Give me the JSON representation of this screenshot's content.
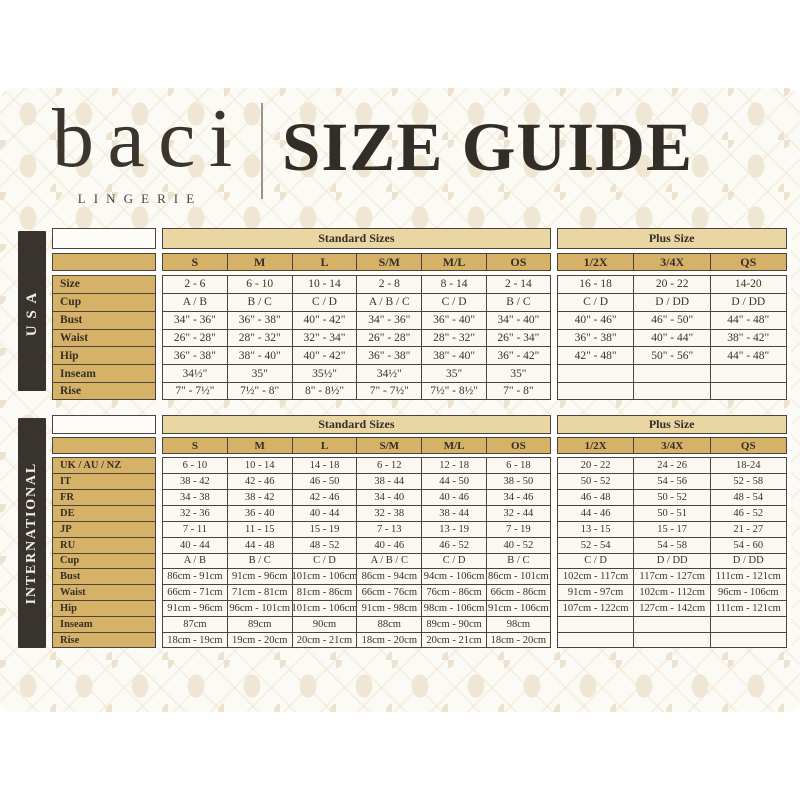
{
  "header": {
    "brand": "baci",
    "brand_sub": "LINGERIE",
    "title": "SIZE GUIDE"
  },
  "colors": {
    "gold": "#d6b269",
    "gold_light": "#e9d6a3",
    "region_strip": "#39332e",
    "border": "#4c443b",
    "text": "#352e27"
  },
  "tables": {
    "usa": {
      "region": "USA",
      "sections": {
        "standard": "Standard Sizes",
        "plus": "Plus Size"
      },
      "columns": [
        "S",
        "M",
        "L",
        "S/M",
        "M/L",
        "OS",
        "1/2X",
        "3/4X",
        "QS"
      ],
      "rows": [
        {
          "label": "Size",
          "values": [
            "2 - 6",
            "6 - 10",
            "10 - 14",
            "2 - 8",
            "8 - 14",
            "2 - 14",
            "16 - 18",
            "20 - 22",
            "14-20"
          ]
        },
        {
          "label": "Cup",
          "values": [
            "A / B",
            "B / C",
            "C / D",
            "A / B / C",
            "C / D",
            "B / C",
            "C / D",
            "D / DD",
            "D / DD"
          ]
        },
        {
          "label": "Bust",
          "values": [
            "34\" - 36\"",
            "36\" - 38\"",
            "40\" - 42\"",
            "34\" - 36\"",
            "36\" - 40\"",
            "34\" - 40\"",
            "40\" - 46\"",
            "46\" - 50\"",
            "44\" - 48\""
          ]
        },
        {
          "label": "Waist",
          "values": [
            "26\" - 28\"",
            "28\" - 32\"",
            "32\" - 34\"",
            "26\" - 28\"",
            "28\" - 32\"",
            "26\" - 34\"",
            "36\" - 38\"",
            "40\" - 44\"",
            "38\" - 42\""
          ]
        },
        {
          "label": "Hip",
          "values": [
            "36\" - 38\"",
            "38\" - 40\"",
            "40\" - 42\"",
            "36\" - 38\"",
            "38\" - 40\"",
            "36\" - 42\"",
            "42\" - 48\"",
            "50\" - 56\"",
            "44\" - 48\""
          ]
        },
        {
          "label": "Inseam",
          "values": [
            "34½\"",
            "35\"",
            "35½\"",
            "34½\"",
            "35\"",
            "35\"",
            "",
            "",
            ""
          ]
        },
        {
          "label": "Rise",
          "values": [
            "7\" - 7½\"",
            "7½\" - 8\"",
            "8\" - 8½\"",
            "7\" - 7½\"",
            "7½\" - 8½\"",
            "7\" - 8\"",
            "",
            "",
            ""
          ]
        }
      ]
    },
    "intl": {
      "region": "INTERNATIONAL",
      "sections": {
        "standard": "Standard Sizes",
        "plus": "Plus Size"
      },
      "columns": [
        "S",
        "M",
        "L",
        "S/M",
        "M/L",
        "OS",
        "1/2X",
        "3/4X",
        "QS"
      ],
      "rows": [
        {
          "label": "UK / AU / NZ",
          "values": [
            "6 - 10",
            "10 - 14",
            "14 - 18",
            "6 - 12",
            "12 - 18",
            "6 - 18",
            "20 - 22",
            "24 - 26",
            "18-24"
          ]
        },
        {
          "label": "IT",
          "values": [
            "38 - 42",
            "42 - 46",
            "46 - 50",
            "38 - 44",
            "44 - 50",
            "38 - 50",
            "50 - 52",
            "54 - 56",
            "52 - 58"
          ]
        },
        {
          "label": "FR",
          "values": [
            "34 - 38",
            "38 - 42",
            "42 - 46",
            "34 - 40",
            "40 - 46",
            "34 - 46",
            "46 - 48",
            "50 - 52",
            "48 - 54"
          ]
        },
        {
          "label": "DE",
          "values": [
            "32 - 36",
            "36 - 40",
            "40 - 44",
            "32 - 38",
            "38 - 44",
            "32 - 44",
            "44 - 46",
            "50 - 51",
            "46 - 52"
          ]
        },
        {
          "label": "JP",
          "values": [
            "7 - 11",
            "11 - 15",
            "15 - 19",
            "7 - 13",
            "13 - 19",
            "7 - 19",
            "13 - 15",
            "15 - 17",
            "21 - 27"
          ]
        },
        {
          "label": "RU",
          "values": [
            "40 - 44",
            "44 - 48",
            "48 - 52",
            "40 - 46",
            "46 - 52",
            "40 - 52",
            "52 - 54",
            "54 - 58",
            "54 - 60"
          ]
        },
        {
          "label": "Cup",
          "values": [
            "A / B",
            "B / C",
            "C / D",
            "A / B / C",
            "C / D",
            "B / C",
            "C / D",
            "D / DD",
            "D / DD"
          ]
        },
        {
          "label": "Bust",
          "values": [
            "86cm - 91cm",
            "91cm - 96cm",
            "101cm - 106cm",
            "86cm - 94cm",
            "94cm - 106cm",
            "86cm - 101cm",
            "102cm - 117cm",
            "117cm - 127cm",
            "111cm - 121cm"
          ]
        },
        {
          "label": "Waist",
          "values": [
            "66cm - 71cm",
            "71cm - 81cm",
            "81cm - 86cm",
            "66cm - 76cm",
            "76cm - 86cm",
            "66cm - 86cm",
            "91cm - 97cm",
            "102cm - 112cm",
            "96cm - 106cm"
          ]
        },
        {
          "label": "Hip",
          "values": [
            "91cm - 96cm",
            "96cm - 101cm",
            "101cm - 106cm",
            "91cm - 98cm",
            "98cm - 106cm",
            "91cm - 106cm",
            "107cm - 122cm",
            "127cm - 142cm",
            "111cm - 121cm"
          ]
        },
        {
          "label": "Inseam",
          "values": [
            "87cm",
            "89cm",
            "90cm",
            "88cm",
            "89cm - 90cm",
            "98cm",
            "",
            "",
            ""
          ]
        },
        {
          "label": "Rise",
          "values": [
            "18cm - 19cm",
            "19cm - 20cm",
            "20cm - 21cm",
            "18cm - 20cm",
            "20cm - 21cm",
            "18cm - 20cm",
            "",
            "",
            ""
          ]
        }
      ]
    }
  }
}
